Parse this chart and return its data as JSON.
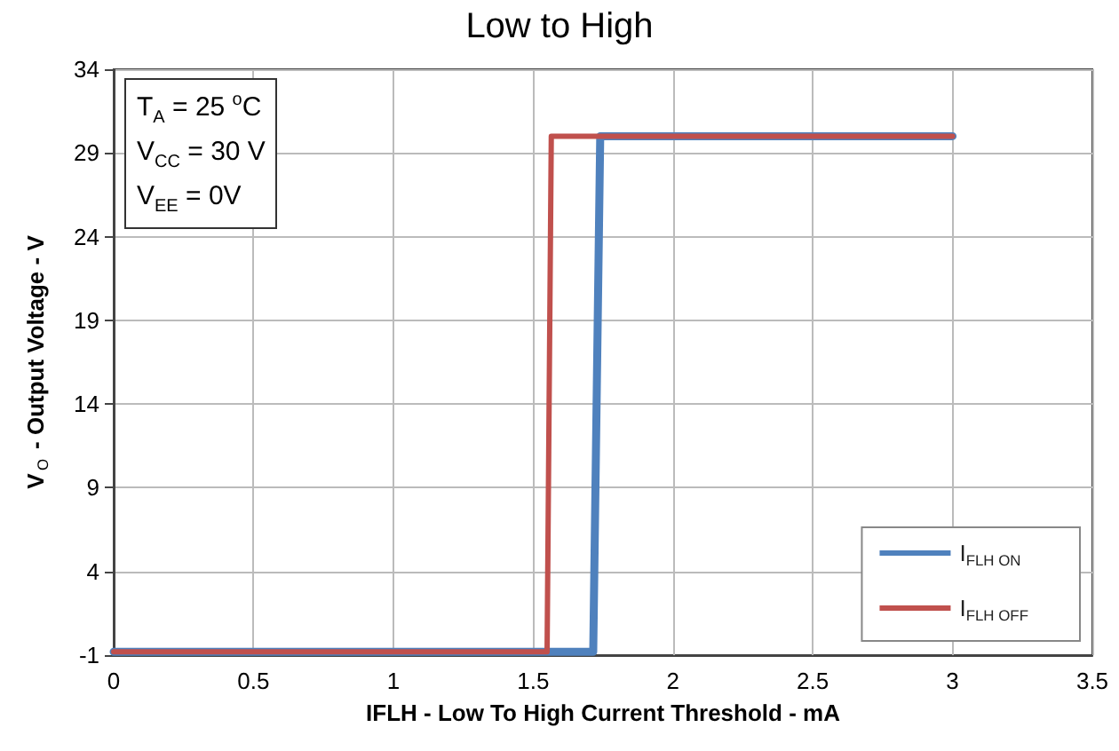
{
  "chart_data": {
    "type": "line",
    "title": "Low to High",
    "xlabel": "IFLH - Low To High Current Threshold - mA",
    "ylabel": "V$_{O}$ - Output Voltage - V",
    "xlim": [
      0,
      3.5
    ],
    "xticks": [
      0,
      0.5,
      1,
      1.5,
      2,
      2.5,
      3,
      3.5
    ],
    "ylim": [
      -1,
      34
    ],
    "yticks": [
      -1,
      4,
      9,
      14,
      19,
      24,
      29,
      34
    ],
    "series": [
      {
        "name": "I$_{FLH ON}$",
        "color": "#4f81bd",
        "x": [
          0,
          1.715,
          1.74,
          3
        ],
        "values": [
          -0.8,
          -0.8,
          30,
          30
        ]
      },
      {
        "name": "I$_{FLH OFF}$",
        "color": "#c0504d",
        "x": [
          0,
          1.55,
          1.565,
          3
        ],
        "values": [
          -0.8,
          -0.8,
          30,
          30
        ]
      }
    ],
    "annotations": [
      "T$_{A}$ = 25 $^{o}$C\nV$_{CC}$ = 30 V\nV$_{EE}$ = 0V"
    ],
    "grid": true,
    "legend": "bottom right",
    "marker": "none",
    "line_style": "solid"
  }
}
